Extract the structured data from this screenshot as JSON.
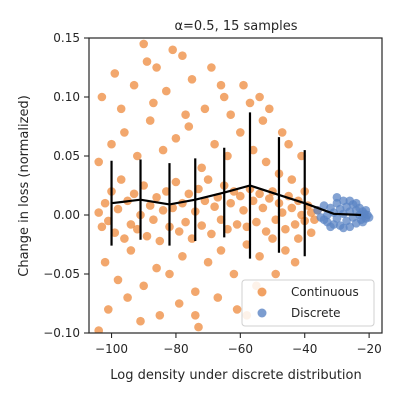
{
  "chart_data": {
    "type": "scatter",
    "title": "α=0.5, 15 samples",
    "xlabel": "Log density under discrete distribution",
    "ylabel": "Change in loss (normalized)",
    "xlim": [
      -107,
      -16
    ],
    "ylim": [
      -0.1,
      0.15
    ],
    "x_ticks": [
      -100,
      -80,
      -60,
      -40,
      -20
    ],
    "x_tick_labels": [
      "−100",
      "−80",
      "−60",
      "−40",
      "−20"
    ],
    "y_ticks": [
      -0.1,
      -0.05,
      0.0,
      0.05,
      0.1,
      0.15
    ],
    "y_tick_labels": [
      "−0.10",
      "−0.05",
      "0.00",
      "0.05",
      "0.10",
      "0.15"
    ],
    "grid": false,
    "legend_position": "lower-right",
    "series": [
      {
        "name": "Continuous",
        "color": "#ee8a3c",
        "marker": "circle",
        "points": [
          [
            -104,
            0.002
          ],
          [
            -103,
            -0.01
          ],
          [
            -102,
            0.01
          ],
          [
            -101,
            -0.005
          ],
          [
            -100,
            0.02
          ],
          [
            -99,
            -0.015
          ],
          [
            -98,
            0.005
          ],
          [
            -97,
            0.03
          ],
          [
            -96,
            -0.02
          ],
          [
            -95,
            0.012
          ],
          [
            -94,
            -0.008
          ],
          [
            -93,
            0.018
          ],
          [
            -92,
            -0.012
          ],
          [
            -91,
            0.0
          ],
          [
            -90,
            0.025
          ],
          [
            -89,
            -0.018
          ],
          [
            -88,
            0.008
          ],
          [
            -87,
            -0.004
          ],
          [
            -86,
            0.015
          ],
          [
            -85,
            -0.022
          ],
          [
            -84,
            0.004
          ],
          [
            -83,
            0.02
          ],
          [
            -82,
            -0.01
          ],
          [
            -81,
            0.006
          ],
          [
            -80,
            0.028
          ],
          [
            -79,
            -0.014
          ],
          [
            -78,
            0.01
          ],
          [
            -77,
            -0.006
          ],
          [
            -76,
            0.018
          ],
          [
            -75,
            -0.02
          ],
          [
            -74,
            0.003
          ],
          [
            -73,
            0.022
          ],
          [
            -72,
            -0.009
          ],
          [
            -71,
            0.012
          ],
          [
            -70,
            0.03
          ],
          [
            -69,
            -0.016
          ],
          [
            -68,
            0.007
          ],
          [
            -67,
            0.015
          ],
          [
            -66,
            -0.004
          ],
          [
            -65,
            0.025
          ],
          [
            -64,
            -0.012
          ],
          [
            -63,
            0.01
          ],
          [
            -62,
            0.02
          ],
          [
            -61,
            -0.008
          ],
          [
            -60,
            0.016
          ],
          [
            -59,
            0.004
          ],
          [
            -58,
            -0.01
          ],
          [
            -57,
            0.022
          ],
          [
            -56,
            0.012
          ],
          [
            -55,
            -0.006
          ],
          [
            -54,
            0.018
          ],
          [
            -53,
            0.006
          ],
          [
            -52,
            -0.014
          ],
          [
            -51,
            0.014
          ],
          [
            -50,
            0.02
          ],
          [
            -49,
            -0.004
          ],
          [
            -48,
            0.01
          ],
          [
            -47,
            0.002
          ],
          [
            -46,
            -0.012
          ],
          [
            -45,
            0.016
          ],
          [
            -44,
            0.006
          ],
          [
            -43,
            -0.008
          ],
          [
            -42,
            0.012
          ],
          [
            -41,
            0.0
          ],
          [
            -40,
            -0.005
          ],
          [
            -39,
            0.008
          ],
          [
            -38,
            0.002
          ],
          [
            -37,
            -0.004
          ],
          [
            -36,
            0.004
          ],
          [
            -104,
            0.045
          ],
          [
            -102,
            -0.04
          ],
          [
            -100,
            0.06
          ],
          [
            -98,
            -0.055
          ],
          [
            -96,
            0.07
          ],
          [
            -94,
            -0.03
          ],
          [
            -92,
            0.05
          ],
          [
            -90,
            -0.06
          ],
          [
            -88,
            0.08
          ],
          [
            -86,
            -0.045
          ],
          [
            -84,
            0.055
          ],
          [
            -82,
            -0.05
          ],
          [
            -80,
            0.065
          ],
          [
            -78,
            -0.035
          ],
          [
            -76,
            0.075
          ],
          [
            -74,
            -0.065
          ],
          [
            -72,
            0.04
          ],
          [
            -70,
            -0.04
          ],
          [
            -68,
            0.06
          ],
          [
            -66,
            -0.03
          ],
          [
            -64,
            0.05
          ],
          [
            -62,
            -0.05
          ],
          [
            -60,
            0.07
          ],
          [
            -58,
            -0.025
          ],
          [
            -56,
            0.055
          ],
          [
            -54,
            -0.035
          ],
          [
            -52,
            0.045
          ],
          [
            -50,
            -0.02
          ],
          [
            -48,
            0.035
          ],
          [
            -46,
            -0.03
          ],
          [
            -44,
            0.03
          ],
          [
            -42,
            -0.02
          ],
          [
            -40,
            0.02
          ],
          [
            -38,
            -0.015
          ],
          [
            -103,
            0.1
          ],
          [
            -101,
            -0.08
          ],
          [
            -99,
            0.12
          ],
          [
            -97,
            0.09
          ],
          [
            -95,
            -0.07
          ],
          [
            -93,
            0.11
          ],
          [
            -91,
            -0.09
          ],
          [
            -89,
            0.13
          ],
          [
            -87,
            0.095
          ],
          [
            -85,
            -0.085
          ],
          [
            -83,
            0.105
          ],
          [
            -81,
            0.14
          ],
          [
            -79,
            -0.075
          ],
          [
            -77,
            0.085
          ],
          [
            -75,
            0.115
          ],
          [
            -73,
            -0.095
          ],
          [
            -71,
            0.09
          ],
          [
            -69,
            0.125
          ],
          [
            -67,
            -0.07
          ],
          [
            -65,
            0.1
          ],
          [
            -63,
            0.085
          ],
          [
            -61,
            -0.08
          ],
          [
            -59,
            0.11
          ],
          [
            -57,
            0.095
          ],
          [
            -55,
            -0.06
          ],
          [
            -53,
            0.08
          ],
          [
            -51,
            0.09
          ],
          [
            -49,
            -0.05
          ],
          [
            -47,
            0.07
          ],
          [
            -45,
            0.06
          ],
          [
            -43,
            -0.04
          ],
          [
            -41,
            0.05
          ],
          [
            -104,
            -0.098
          ],
          [
            -90,
            0.145
          ],
          [
            -78,
            0.135
          ],
          [
            -66,
            0.11
          ],
          [
            -54,
            0.1
          ],
          [
            -58,
            -0.085
          ],
          [
            -74,
            -0.085
          ],
          [
            -86,
            0.125
          ]
        ]
      },
      {
        "name": "Discrete",
        "color": "#5b84c4",
        "marker": "circle",
        "points": [
          [
            -36,
            0.004
          ],
          [
            -35,
            -0.002
          ],
          [
            -34,
            0.008
          ],
          [
            -33,
            0.0
          ],
          [
            -33,
            -0.006
          ],
          [
            -32,
            0.006
          ],
          [
            -31,
            0.002
          ],
          [
            -31,
            -0.008
          ],
          [
            -30,
            0.01
          ],
          [
            -30,
            -0.003
          ],
          [
            -29,
            0.005
          ],
          [
            -29,
            -0.009
          ],
          [
            -28,
            0.012
          ],
          [
            -28,
            0.001
          ],
          [
            -27,
            -0.005
          ],
          [
            -27,
            0.007
          ],
          [
            -26,
            0.003
          ],
          [
            -26,
            -0.01
          ],
          [
            -25,
            0.009
          ],
          [
            -25,
            -0.002
          ],
          [
            -24,
            0.004
          ],
          [
            -24,
            -0.007
          ],
          [
            -23,
            0.006
          ],
          [
            -23,
            0.0
          ],
          [
            -22.5,
            -0.004
          ],
          [
            -22,
            0.003
          ],
          [
            -22,
            -0.006
          ],
          [
            -21.5,
            0.001
          ],
          [
            -21,
            0.004
          ],
          [
            -21,
            -0.003
          ],
          [
            -20.5,
            0.0
          ],
          [
            -20,
            -0.002
          ],
          [
            -30,
            0.015
          ],
          [
            -28,
            -0.011
          ],
          [
            -26,
            0.012
          ],
          [
            -24,
            0.01
          ],
          [
            -32,
            -0.01
          ],
          [
            -34,
            -0.004
          ]
        ]
      }
    ],
    "mean_line": {
      "color": "#000000",
      "x": [
        -100,
        -91,
        -82,
        -74,
        -65,
        -57,
        -48,
        -40,
        -31,
        -22.5
      ],
      "y": [
        0.01,
        0.013,
        0.009,
        0.013,
        0.019,
        0.025,
        0.017,
        0.01,
        0.001,
        0.0
      ],
      "err": [
        0.036,
        0.034,
        0.035,
        0.035,
        0.038,
        0.062,
        0.049,
        0.045,
        0.0,
        0.0
      ]
    }
  }
}
